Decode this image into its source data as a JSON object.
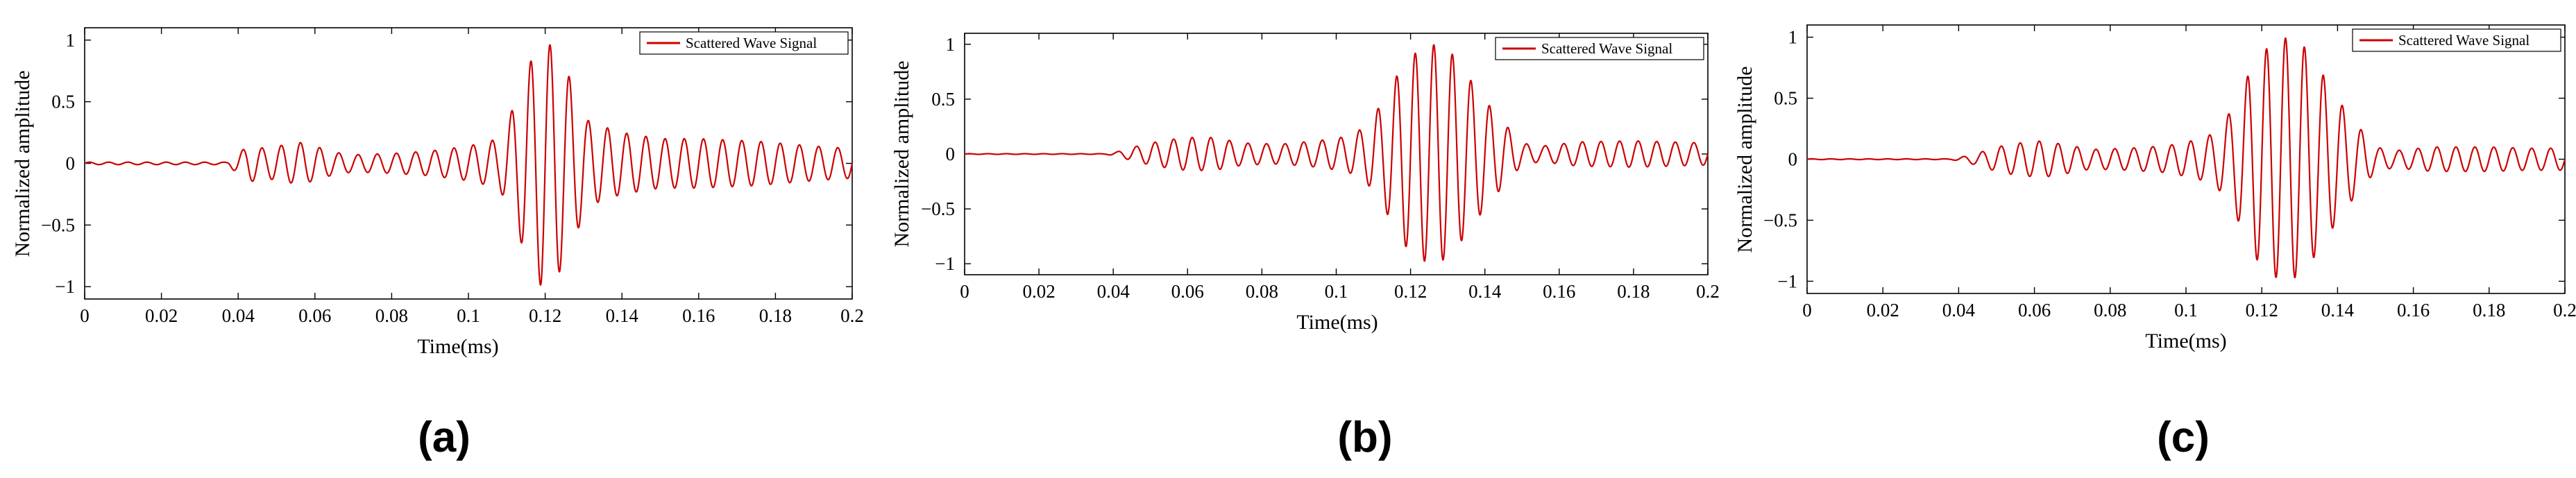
{
  "figure": {
    "panels": [
      {
        "caption": "(a)"
      },
      {
        "caption": "(b)"
      },
      {
        "caption": "(c)"
      }
    ]
  },
  "chart_data": [
    {
      "type": "line",
      "xlabel": "Time(ms)",
      "ylabel": "Normalized amplitude",
      "xlim": [
        0,
        0.2
      ],
      "ylim": [
        -1.1,
        1.1
      ],
      "xticks": [
        0,
        0.02,
        0.04,
        0.06,
        0.08,
        0.1,
        0.12,
        0.14,
        0.16,
        0.18,
        0.2
      ],
      "xtick_labels": [
        "0",
        "0.02",
        "0.04",
        "0.06",
        "0.08",
        "0.1",
        "0.12",
        "0.14",
        "0.16",
        "0.18",
        "0.2"
      ],
      "yticks": [
        -1,
        -0.5,
        0,
        0.5,
        1
      ],
      "ytick_labels": [
        "−1",
        "−0.5",
        "0",
        "0.5",
        "1"
      ],
      "legend_position": "top-right",
      "series": [
        {
          "name": "Scattered Wave Signal",
          "color": "#cc0000",
          "carrier_freq_per_ms": 200,
          "envelope_points": [
            [
              0,
              0.01
            ],
            [
              0.037,
              0.01
            ],
            [
              0.039,
              0.06
            ],
            [
              0.043,
              0.15
            ],
            [
              0.047,
              0.12
            ],
            [
              0.052,
              0.15
            ],
            [
              0.056,
              0.17
            ],
            [
              0.06,
              0.14
            ],
            [
              0.065,
              0.09
            ],
            [
              0.07,
              0.07
            ],
            [
              0.08,
              0.08
            ],
            [
              0.09,
              0.1
            ],
            [
              0.1,
              0.14
            ],
            [
              0.108,
              0.2
            ],
            [
              0.111,
              0.4
            ],
            [
              0.115,
              0.75
            ],
            [
              0.119,
              1.0
            ],
            [
              0.123,
              0.93
            ],
            [
              0.127,
              0.65
            ],
            [
              0.131,
              0.35
            ],
            [
              0.135,
              0.3
            ],
            [
              0.14,
              0.25
            ],
            [
              0.15,
              0.2
            ],
            [
              0.16,
              0.2
            ],
            [
              0.175,
              0.18
            ],
            [
              0.19,
              0.14
            ],
            [
              0.2,
              0.12
            ]
          ]
        }
      ]
    },
    {
      "type": "line",
      "xlabel": "Time(ms)",
      "ylabel": "Normalized amplitude",
      "xlim": [
        0,
        0.2
      ],
      "ylim": [
        -1.1,
        1.1
      ],
      "xticks": [
        0,
        0.02,
        0.04,
        0.06,
        0.08,
        0.1,
        0.12,
        0.14,
        0.16,
        0.18,
        0.2
      ],
      "xtick_labels": [
        "0",
        "0.02",
        "0.04",
        "0.06",
        "0.08",
        "0.1",
        "0.12",
        "0.14",
        "0.16",
        "0.18",
        "0.2"
      ],
      "yticks": [
        -1,
        -0.5,
        0,
        0.5,
        1
      ],
      "ytick_labels": [
        "−1",
        "−0.5",
        "0",
        "0.5",
        "1"
      ],
      "legend_position": "top-right",
      "series": [
        {
          "name": "Scattered Wave Signal",
          "color": "#cc0000",
          "carrier_freq_per_ms": 200,
          "envelope_points": [
            [
              0,
              0.003
            ],
            [
              0.038,
              0.003
            ],
            [
              0.041,
              0.02
            ],
            [
              0.045,
              0.06
            ],
            [
              0.05,
              0.1
            ],
            [
              0.055,
              0.13
            ],
            [
              0.06,
              0.15
            ],
            [
              0.067,
              0.15
            ],
            [
              0.075,
              0.1
            ],
            [
              0.085,
              0.09
            ],
            [
              0.095,
              0.12
            ],
            [
              0.103,
              0.16
            ],
            [
              0.108,
              0.25
            ],
            [
              0.113,
              0.5
            ],
            [
              0.118,
              0.82
            ],
            [
              0.123,
              0.97
            ],
            [
              0.127,
              1.0
            ],
            [
              0.131,
              0.92
            ],
            [
              0.136,
              0.68
            ],
            [
              0.141,
              0.45
            ],
            [
              0.146,
              0.25
            ],
            [
              0.15,
              0.1
            ],
            [
              0.155,
              0.07
            ],
            [
              0.165,
              0.11
            ],
            [
              0.18,
              0.12
            ],
            [
              0.19,
              0.11
            ],
            [
              0.2,
              0.1
            ]
          ]
        }
      ]
    },
    {
      "type": "line",
      "xlabel": "Time(ms)",
      "ylabel": "Normalized amplitude",
      "xlim": [
        0,
        0.2
      ],
      "ylim": [
        -1.1,
        1.1
      ],
      "xticks": [
        0,
        0.02,
        0.04,
        0.06,
        0.08,
        0.1,
        0.12,
        0.14,
        0.16,
        0.18,
        0.2
      ],
      "xtick_labels": [
        "0",
        "0.02",
        "0.04",
        "0.06",
        "0.08",
        "0.1",
        "0.12",
        "0.14",
        "0.16",
        "0.18",
        "0.2"
      ],
      "yticks": [
        -1,
        -0.5,
        0,
        0.5,
        1
      ],
      "ytick_labels": [
        "−1",
        "−0.5",
        "0",
        "0.5",
        "1"
      ],
      "legend_position": "top-right",
      "series": [
        {
          "name": "Scattered Wave Signal",
          "color": "#cc0000",
          "carrier_freq_per_ms": 200,
          "envelope_points": [
            [
              0,
              0.003
            ],
            [
              0.038,
              0.003
            ],
            [
              0.041,
              0.02
            ],
            [
              0.045,
              0.05
            ],
            [
              0.05,
              0.1
            ],
            [
              0.055,
              0.13
            ],
            [
              0.062,
              0.15
            ],
            [
              0.068,
              0.12
            ],
            [
              0.075,
              0.08
            ],
            [
              0.085,
              0.09
            ],
            [
              0.095,
              0.11
            ],
            [
              0.103,
              0.16
            ],
            [
              0.108,
              0.22
            ],
            [
              0.113,
              0.45
            ],
            [
              0.118,
              0.8
            ],
            [
              0.123,
              0.96
            ],
            [
              0.127,
              1.0
            ],
            [
              0.131,
              0.93
            ],
            [
              0.136,
              0.7
            ],
            [
              0.141,
              0.45
            ],
            [
              0.146,
              0.25
            ],
            [
              0.15,
              0.1
            ],
            [
              0.155,
              0.07
            ],
            [
              0.165,
              0.1
            ],
            [
              0.18,
              0.1
            ],
            [
              0.19,
              0.09
            ],
            [
              0.2,
              0.09
            ]
          ]
        }
      ]
    }
  ]
}
